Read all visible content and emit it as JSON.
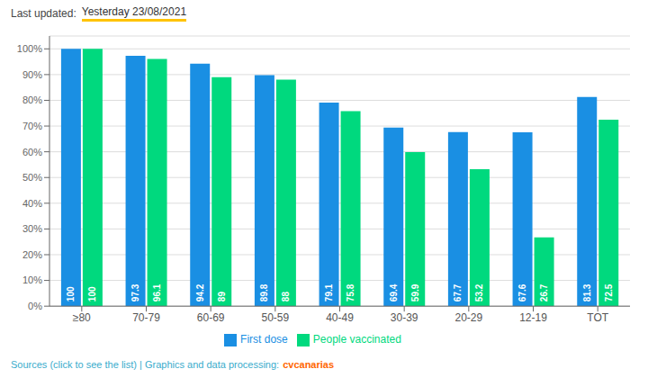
{
  "chart_data": {
    "type": "bar",
    "categories": [
      "≥80",
      "70-79",
      "60-69",
      "50-59",
      "40-49",
      "30-39",
      "20-29",
      "12-19",
      "TOT"
    ],
    "series": [
      {
        "name": "First dose",
        "color": "#1A8FE3",
        "values": [
          100,
          97.3,
          94.2,
          89.8,
          79.1,
          69.4,
          67.7,
          67.6,
          81.3
        ]
      },
      {
        "name": "People vaccinated",
        "color": "#00D97E",
        "values": [
          100,
          96.1,
          89,
          88,
          75.8,
          59.9,
          53.2,
          26.7,
          72.5
        ]
      }
    ],
    "ylim": [
      0,
      105
    ],
    "yticks": [
      {
        "value": 0,
        "label": "0%"
      },
      {
        "value": 10,
        "label": "10%"
      },
      {
        "value": 20,
        "label": "20%"
      },
      {
        "value": 30,
        "label": "30%"
      },
      {
        "value": 40,
        "label": "40%"
      },
      {
        "value": 50,
        "label": "50%"
      },
      {
        "value": 60,
        "label": "60%"
      },
      {
        "value": 70,
        "label": "70%"
      },
      {
        "value": 80,
        "label": "80%"
      },
      {
        "value": 90,
        "label": "90%"
      },
      {
        "value": 100,
        "label": "100%"
      }
    ],
    "grid": true,
    "legend": "bottom",
    "data_labels": true,
    "annotations": [
      "Last updated:",
      "Yesterday 23/08/2021",
      "Sources (click to see the list) | Graphics and data processing:",
      "cvcanarias"
    ]
  }
}
